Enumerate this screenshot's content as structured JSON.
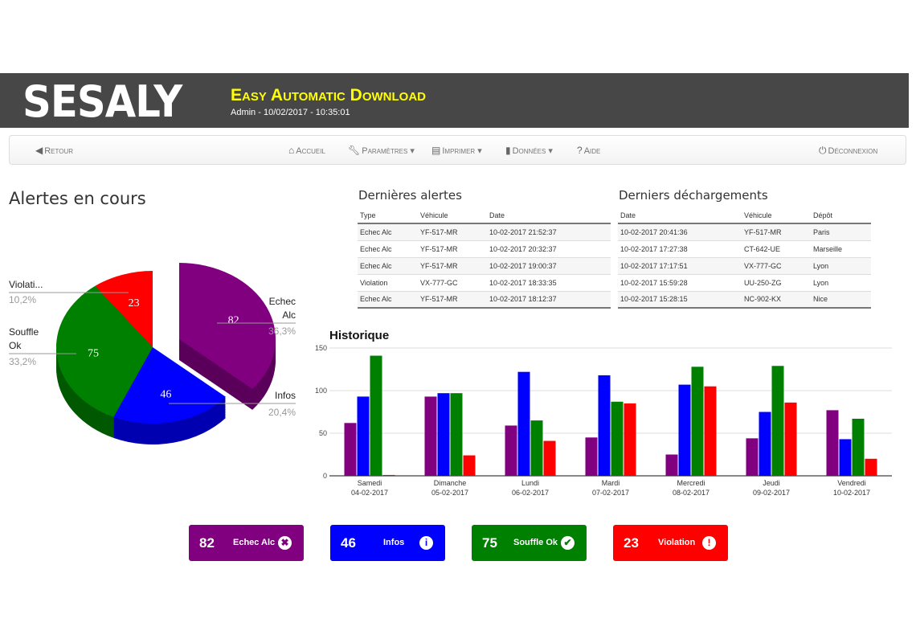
{
  "header": {
    "logo": "SESALY",
    "title": "Easy Automatic Download",
    "subtitle": "Admin - 10/02/2017 - 10:35:01"
  },
  "nav": {
    "back": "Retour",
    "home": "Accueil",
    "settings": "Paramètres",
    "print": "Imprimer",
    "data": "Données",
    "help": "Aide",
    "logout": "Déconnexion"
  },
  "alerts_title": "Alertes en cours",
  "pie": {
    "slices": [
      {
        "label": "Echec Alc",
        "label_lines": [
          "Echec",
          "Alc"
        ],
        "value": 82,
        "pct": "36,3%",
        "color": "#800080",
        "dark": "#5a005a"
      },
      {
        "label": "Infos",
        "label_lines": [
          "Infos"
        ],
        "value": 46,
        "pct": "20,4%",
        "color": "#0000ff",
        "dark": "#0000b0"
      },
      {
        "label": "Souffle Ok",
        "label_lines": [
          "Souffle",
          "Ok"
        ],
        "value": 75,
        "pct": "33,2%",
        "color": "#008000",
        "dark": "#005800"
      },
      {
        "label": "Violation",
        "label_lines": [
          "Violati..."
        ],
        "value": 23,
        "pct": "10,2%",
        "color": "#ff0000",
        "dark": "#b00000"
      }
    ]
  },
  "last_alerts": {
    "title": "Dernières alertes",
    "columns": [
      "Type",
      "Véhicule",
      "Date"
    ],
    "rows": [
      [
        "Echec Alc",
        "YF-517-MR",
        "10-02-2017 21:52:37"
      ],
      [
        "Echec Alc",
        "YF-517-MR",
        "10-02-2017 20:32:37"
      ],
      [
        "Echec Alc",
        "YF-517-MR",
        "10-02-2017 19:00:37"
      ],
      [
        "Violation",
        "VX-777-GC",
        "10-02-2017 18:33:35"
      ],
      [
        "Echec Alc",
        "YF-517-MR",
        "10-02-2017 18:12:37"
      ]
    ]
  },
  "last_downloads": {
    "title": "Derniers déchargements",
    "columns": [
      "Date",
      "Véhicule",
      "Dépôt"
    ],
    "rows": [
      [
        "10-02-2017 20:41:36",
        "YF-517-MR",
        "Paris"
      ],
      [
        "10-02-2017 17:27:38",
        "CT-642-UE",
        "Marseille"
      ],
      [
        "10-02-2017 17:17:51",
        "VX-777-GC",
        "Lyon"
      ],
      [
        "10-02-2017 15:59:28",
        "UU-250-ZG",
        "Lyon"
      ],
      [
        "10-02-2017 15:28:15",
        "NC-902-KX",
        "Nice"
      ]
    ]
  },
  "chart_data": {
    "type": "bar",
    "title": "Historique",
    "categories": [
      [
        "Samedi",
        "04-02-2017"
      ],
      [
        "Dimanche",
        "05-02-2017"
      ],
      [
        "Lundi",
        "06-02-2017"
      ],
      [
        "Mardi",
        "07-02-2017"
      ],
      [
        "Mercredi",
        "08-02-2017"
      ],
      [
        "Jeudi",
        "09-02-2017"
      ],
      [
        "Vendredi",
        "10-02-2017"
      ]
    ],
    "ylim": [
      0,
      150
    ],
    "yticks": [
      0,
      50,
      100,
      150
    ],
    "grid": true,
    "series": [
      {
        "color": "#800080",
        "values": [
          62,
          93,
          59,
          45,
          25,
          44,
          77
        ]
      },
      {
        "color": "#0000ff",
        "values": [
          93,
          97,
          122,
          118,
          107,
          75,
          43
        ]
      },
      {
        "color": "#008000",
        "values": [
          141,
          97,
          65,
          87,
          128,
          129,
          67
        ]
      },
      {
        "color": "#ff0000",
        "values": [
          1,
          24,
          41,
          85,
          105,
          86,
          20
        ]
      }
    ]
  },
  "badges": [
    {
      "value": "82",
      "label": "Echec Alc",
      "icon": "times-circle-icon",
      "glyph": "✖",
      "color": "#800080"
    },
    {
      "value": "46",
      "label": "Infos",
      "icon": "info-circle-icon",
      "glyph": "i",
      "color": "#0000ff"
    },
    {
      "value": "75",
      "label": "Souffle Ok",
      "icon": "check-circle-icon",
      "glyph": "✔",
      "color": "#008000"
    },
    {
      "value": "23",
      "label": "Violation",
      "icon": "exclamation-circle-icon",
      "glyph": "!",
      "color": "#ff0000"
    }
  ]
}
